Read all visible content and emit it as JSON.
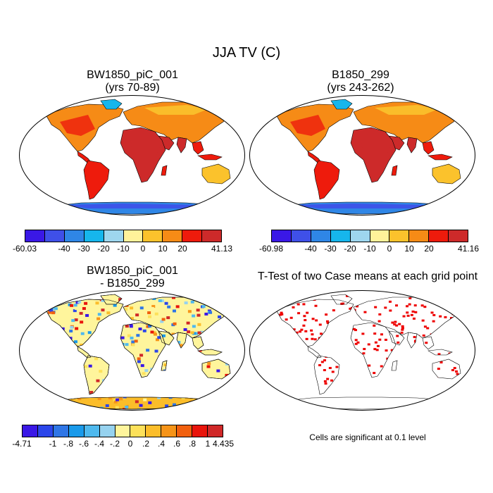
{
  "main_title": "JJA TV (C)",
  "panels": {
    "top_left": {
      "title_line1": "BW1850_piC_001",
      "title_line2": "(yrs 70-89)"
    },
    "top_right": {
      "title_line1": "B1850_299",
      "title_line2": "(yrs 243-262)"
    },
    "bottom_left": {
      "title_line1": "BW1850_piC_001",
      "title_line2": "- B1850_299"
    },
    "bottom_right": {
      "title": "T-Test of two Case means at each grid point",
      "note": "Cells are significant at 0.1 level"
    }
  },
  "colorbars": {
    "top_left": {
      "colors": [
        "#3a18e6",
        "#3f50e8",
        "#2f86e6",
        "#16b6ec",
        "#9ed6ee",
        "#fff29a",
        "#fbc22c",
        "#f68b16",
        "#ee1b0c",
        "#cd2a2a"
      ],
      "labels": [
        "-60.03",
        "-40",
        "-30",
        "-20",
        "-10",
        "0",
        "10",
        "20",
        "41.13"
      ]
    },
    "top_right": {
      "colors": [
        "#3a18e6",
        "#3f50e8",
        "#2f86e6",
        "#16b6ec",
        "#9ed6ee",
        "#fff29a",
        "#fbc22c",
        "#f68b16",
        "#ee1b0c",
        "#cd2a2a"
      ],
      "labels": [
        "-60.98",
        "-40",
        "-30",
        "-20",
        "-10",
        "0",
        "10",
        "20",
        "41.16"
      ]
    },
    "bottom_left": {
      "colors": [
        "#3a18e6",
        "#2b46ea",
        "#2f76e6",
        "#1a9aea",
        "#4fb9ee",
        "#96d2ef",
        "#fff59c",
        "#fde15a",
        "#fbbd2a",
        "#f69418",
        "#f1600e",
        "#e9150c",
        "#d02828"
      ],
      "labels": [
        "-4.71",
        "-1",
        "-.8",
        "-.6",
        "-.4",
        "-.2",
        "0",
        ".2",
        ".4",
        ".6",
        ".8",
        "1",
        "4.435"
      ]
    }
  },
  "colors": {
    "ocean": "#ffffff",
    "land_warm": "#ee1b0c",
    "land_hot": "#cd2a2a",
    "land_mid": "#f68b16",
    "land_cool": "#fbc22c",
    "ice": "#2f86e6",
    "ice_edge": "#16b6ec",
    "sig": "#ee0000"
  }
}
